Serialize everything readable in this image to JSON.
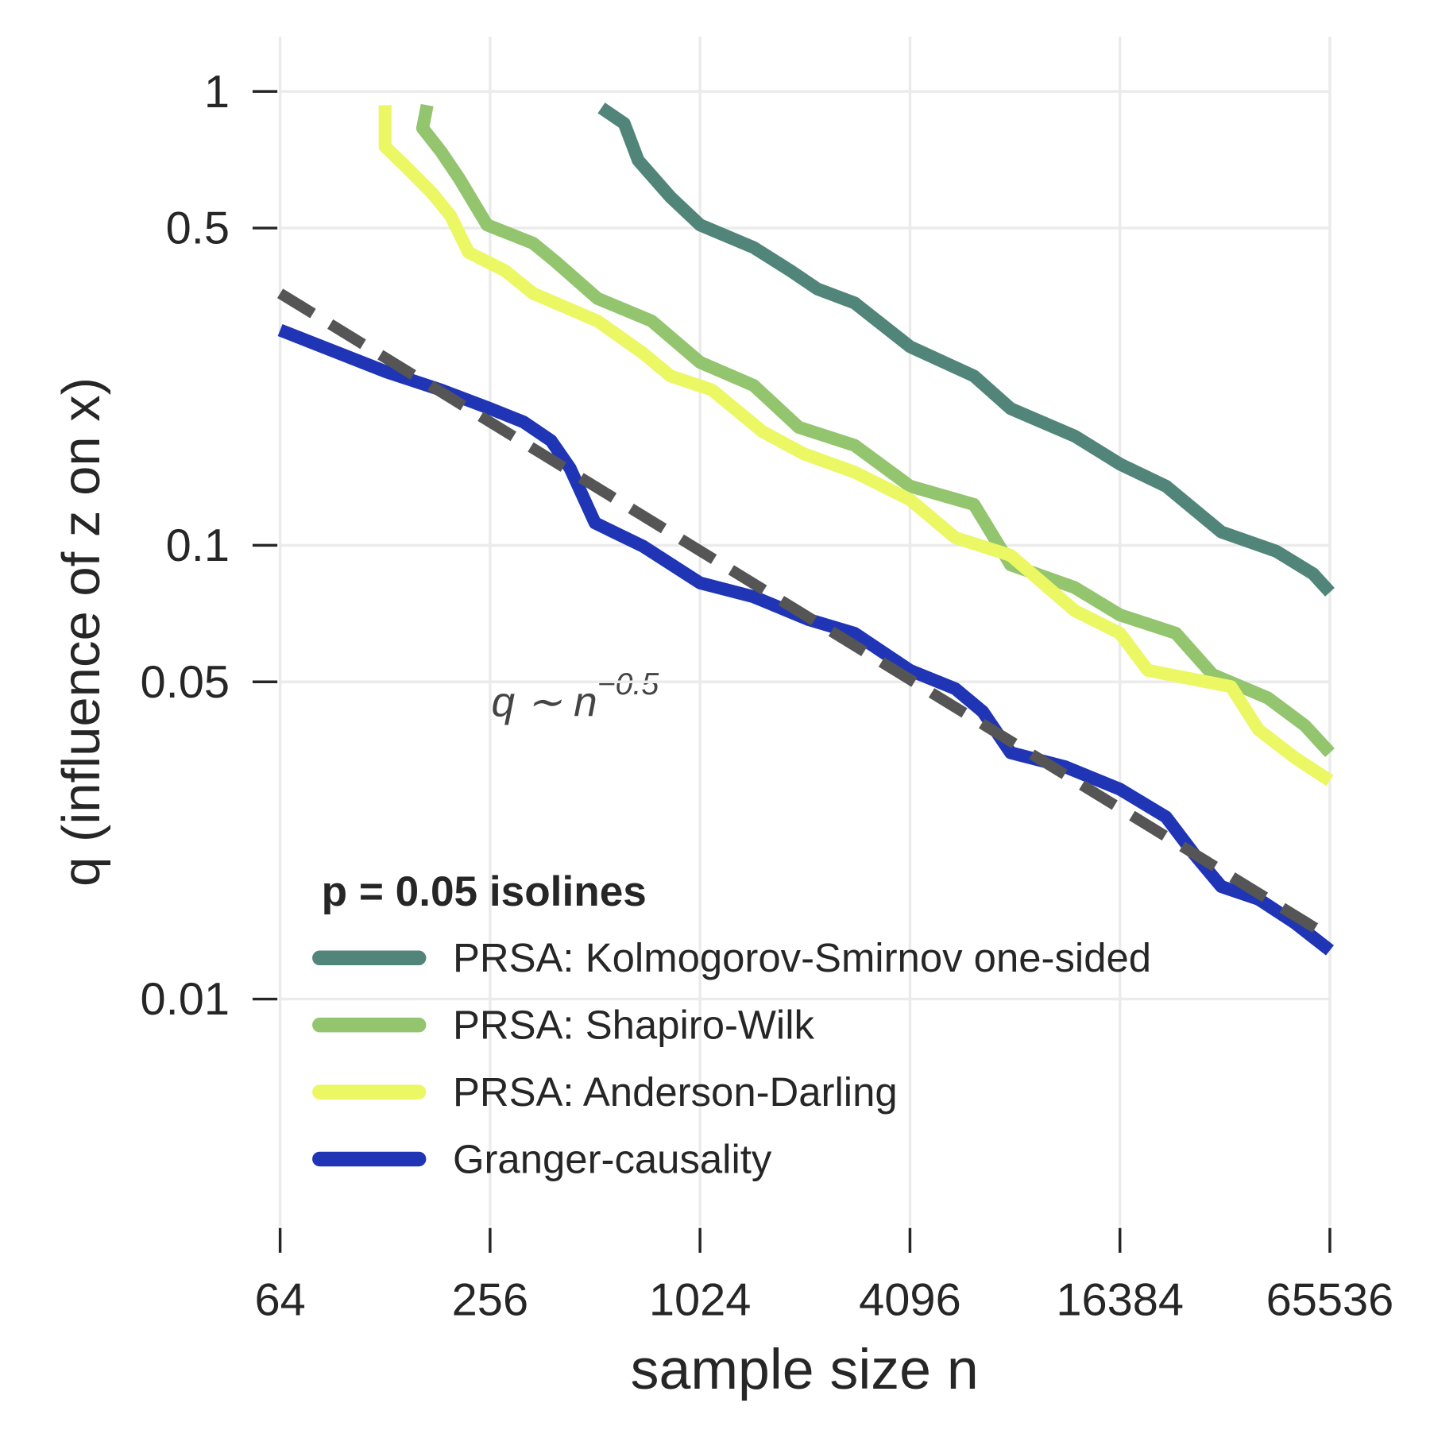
{
  "chart_data": {
    "type": "line",
    "xlabel": "sample size n",
    "ylabel": "q (influence of z on x)",
    "log_x": true,
    "log_y": true,
    "grid": true,
    "xlim": [
      64,
      65536
    ],
    "ylim": [
      0.00316,
      1.32
    ],
    "xticks": [
      64,
      256,
      1024,
      4096,
      16384,
      65536
    ],
    "yticks": [
      1,
      0.5,
      0.1,
      0.05,
      0.01
    ],
    "legend_title": "p = 0.05 isolines",
    "legend_position": "lower left",
    "series": [
      {
        "name": "PRSA: Kolmogorov-Smirnov one-sided",
        "color": "#52857a",
        "x": [
          534,
          621,
          681,
          843,
          1024,
          1459,
          1857,
          2225,
          2840,
          4096,
          6250,
          7960,
          12150,
          16384,
          22200,
          32000,
          46000,
          58700,
          65536
        ],
        "values": [
          0.92,
          0.85,
          0.705,
          0.585,
          0.508,
          0.453,
          0.403,
          0.367,
          0.342,
          0.274,
          0.236,
          0.2,
          0.174,
          0.151,
          0.135,
          0.107,
          0.097,
          0.0865,
          0.0788
        ]
      },
      {
        "name": "PRSA: Shapiro-Wilk",
        "color": "#93c46e",
        "x": [
          169,
          164,
          185,
          209,
          251,
          340,
          394,
          520,
          744,
          1024,
          1459,
          1965,
          2840,
          4096,
          6250,
          7960,
          12150,
          16384,
          23700,
          30200,
          43500,
          55500,
          65536
        ],
        "values": [
          0.933,
          0.83,
          0.738,
          0.642,
          0.508,
          0.463,
          0.422,
          0.35,
          0.312,
          0.253,
          0.225,
          0.182,
          0.166,
          0.135,
          0.123,
          0.0906,
          0.0807,
          0.0702,
          0.064,
          0.0519,
          0.0461,
          0.0401,
          0.0349
        ]
      },
      {
        "name": "PRSA: Anderson-Darling",
        "color": "#ecf764",
        "x": [
          128,
          128,
          145,
          174,
          197,
          222,
          282,
          340,
          520,
          703,
          843,
          1107,
          1547,
          2035,
          2840,
          4096,
          5520,
          7960,
          12150,
          16384,
          19700,
          34100,
          40900,
          52100,
          65536
        ],
        "values": [
          0.933,
          0.756,
          0.689,
          0.599,
          0.533,
          0.442,
          0.403,
          0.359,
          0.312,
          0.265,
          0.236,
          0.22,
          0.178,
          0.159,
          0.145,
          0.126,
          0.104,
          0.095,
          0.0718,
          0.064,
          0.053,
          0.0488,
          0.0392,
          0.034,
          0.0303
        ]
      },
      {
        "name": "Granger-causality",
        "color": "#1f35b5",
        "x": [
          64,
          129,
          185,
          256,
          319,
          383,
          434,
          512,
          703,
          1024,
          1459,
          2097,
          2840,
          4096,
          5520,
          6620,
          7960,
          11420,
          16384,
          22200,
          26700,
          32000,
          40900,
          52100,
          65536
        ],
        "values": [
          0.298,
          0.241,
          0.22,
          0.2,
          0.187,
          0.17,
          0.148,
          0.112,
          0.0995,
          0.0826,
          0.077,
          0.0686,
          0.064,
          0.053,
          0.0483,
          0.043,
          0.0349,
          0.0325,
          0.029,
          0.0252,
          0.0209,
          0.0177,
          0.0166,
          0.0147,
          0.0128
        ]
      }
    ],
    "reference_line": {
      "x": [
        64,
        65536
      ],
      "values": [
        0.359,
        0.0137
      ],
      "color": "#555555",
      "dashed": true
    },
    "annotation": {
      "text": "q ∼ n",
      "superscript": "−0.5"
    }
  }
}
